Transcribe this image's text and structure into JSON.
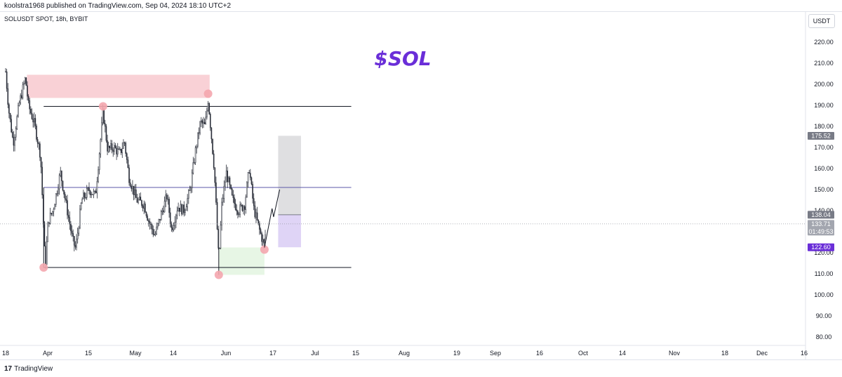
{
  "header": {
    "publish_line": "koolstra1968 published on TradingView.com, Sep 04, 2024 18:10 UTC+2",
    "symbol_line": "SOLUSDT SPOT, 18h, BYBIT",
    "currency": "USDT"
  },
  "footer": {
    "brand_logo": "17",
    "brand_name": "TradingView"
  },
  "annotation": {
    "text": "$SOL",
    "color": "#6a2ed8"
  },
  "colors": {
    "candles": "#2a2e39",
    "supply_zone": "#f8c9cf",
    "demand_zone": "#e3f5e1",
    "target_zone": "#d9d9dc",
    "stop_zone": "#d9ccf5",
    "pivot": "#f4a6ae",
    "midline": "#5b57a8",
    "stop_label": "#6a2ed8"
  },
  "chart_data": {
    "type": "candlestick",
    "title": "SOLUSDT SPOT, 18h, BYBIT",
    "y_axis": {
      "min": 80,
      "max": 220,
      "ticks": [
        220,
        210,
        200,
        190,
        180,
        170,
        160,
        150,
        140,
        130,
        120,
        110,
        100,
        90,
        80
      ],
      "position": "right"
    },
    "x_axis": {
      "ticks": [
        "18",
        "Apr",
        "15",
        "May",
        "14",
        "Jun",
        "17",
        "Jul",
        "15",
        "Aug",
        "19",
        "Sep",
        "16",
        "Oct",
        "14",
        "Nov",
        "18",
        "Dec",
        "16"
      ]
    },
    "price_path": [
      [
        "2024-03-18",
        206
      ],
      [
        "2024-03-20",
        188
      ],
      [
        "2024-03-23",
        172
      ],
      [
        "2024-03-27",
        191
      ],
      [
        "2024-03-31",
        203
      ],
      [
        "2024-04-02",
        190
      ],
      [
        "2024-04-06",
        181
      ],
      [
        "2024-04-10",
        166
      ],
      [
        "2024-04-13",
        113
      ],
      [
        "2024-04-15",
        135
      ],
      [
        "2024-04-18",
        140
      ],
      [
        "2024-04-23",
        158
      ],
      [
        "2024-04-27",
        142
      ],
      [
        "2024-05-01",
        126
      ],
      [
        "2024-05-03",
        122
      ],
      [
        "2024-05-07",
        145
      ],
      [
        "2024-05-12",
        150
      ],
      [
        "2024-05-16",
        147
      ],
      [
        "2024-05-21",
        187
      ],
      [
        "2024-05-24",
        169
      ],
      [
        "2024-05-28",
        170
      ],
      [
        "2024-06-01",
        167
      ],
      [
        "2024-06-04",
        173
      ],
      [
        "2024-06-07",
        156
      ],
      [
        "2024-06-12",
        145
      ],
      [
        "2024-06-17",
        143
      ],
      [
        "2024-06-20",
        135
      ],
      [
        "2024-06-24",
        128
      ],
      [
        "2024-06-28",
        138
      ],
      [
        "2024-07-02",
        147
      ],
      [
        "2024-07-05",
        131
      ],
      [
        "2024-07-09",
        142
      ],
      [
        "2024-07-13",
        140
      ],
      [
        "2024-07-17",
        149
      ],
      [
        "2024-07-21",
        170
      ],
      [
        "2024-07-24",
        182
      ],
      [
        "2024-07-27",
        180
      ],
      [
        "2024-07-29",
        193
      ],
      [
        "2024-08-02",
        160
      ],
      [
        "2024-08-05",
        116
      ],
      [
        "2024-08-07",
        143
      ],
      [
        "2024-08-10",
        158
      ],
      [
        "2024-08-14",
        145
      ],
      [
        "2024-08-18",
        140
      ],
      [
        "2024-08-22",
        143
      ],
      [
        "2024-08-25",
        160
      ],
      [
        "2024-08-28",
        141
      ],
      [
        "2024-09-01",
        130
      ],
      [
        "2024-09-04",
        123
      ],
      [
        "2024-09-05",
        133.7
      ]
    ],
    "price_labels": [
      {
        "value": 175.52,
        "text": "175.52",
        "color": "#787b86"
      },
      {
        "value": 138.04,
        "text": "138.04",
        "color": "#787b86"
      },
      {
        "value": 133.71,
        "text": "133.71",
        "text2": "01:49:53",
        "color": "#a3a6af"
      },
      {
        "value": 122.6,
        "text": "122.60",
        "color": "#6a2ed8"
      }
    ],
    "horizontal_lines": [
      {
        "value": 189.5,
        "start": "2024-04-12",
        "end": "2024-10-31",
        "role": "range-high"
      },
      {
        "value": 151.0,
        "start": "2024-04-12",
        "end": "2024-10-31",
        "role": "range-mid"
      },
      {
        "value": 113.0,
        "start": "2024-04-12",
        "end": "2024-10-31",
        "role": "range-low"
      }
    ],
    "zones": [
      {
        "role": "supply",
        "top": 204.5,
        "bottom": 193.5,
        "start": "2024-04-01",
        "end": "2024-07-30"
      },
      {
        "role": "demand",
        "top": 122.5,
        "bottom": 109.5,
        "start": "2024-08-05",
        "end": "2024-09-04"
      },
      {
        "role": "target",
        "top": 175.52,
        "bottom": 138.04,
        "start": "2024-09-13",
        "end": "2024-09-28"
      },
      {
        "role": "stop",
        "top": 138.04,
        "bottom": 122.6,
        "start": "2024-09-13",
        "end": "2024-09-28"
      }
    ],
    "pivots": [
      {
        "date": "2024-04-12",
        "value": 113
      },
      {
        "date": "2024-05-21",
        "value": 189.5
      },
      {
        "date": "2024-07-29",
        "value": 195.5
      },
      {
        "date": "2024-08-05",
        "value": 109.5
      },
      {
        "date": "2024-09-04",
        "value": 121.5
      }
    ],
    "projection": [
      [
        "2024-09-04",
        122.5
      ],
      [
        "2024-09-09",
        141
      ],
      [
        "2024-09-10",
        137
      ],
      [
        "2024-09-14",
        150
      ]
    ]
  }
}
